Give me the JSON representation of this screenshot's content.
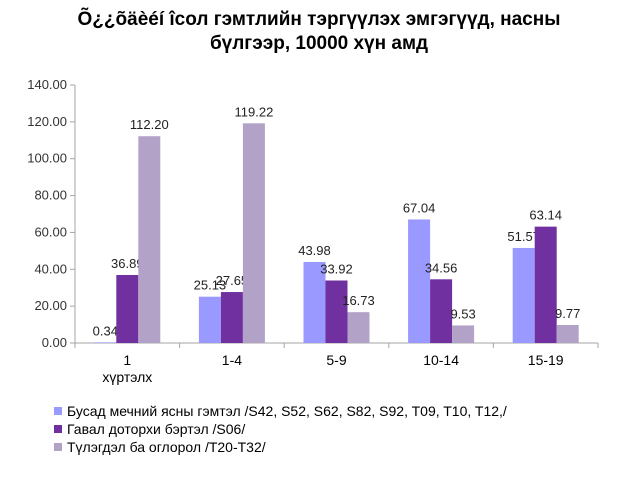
{
  "title_line1": "Õ¿¿õäèéí îсол гэмтлийн тэргүүлэх эмгэгүүд, насны",
  "title_line2": "бүлгээр, 10000 хүн амд",
  "colors": {
    "s1": "#9999ff",
    "s2": "#7030a0",
    "s3": "#b3a2c7",
    "axis": "#a6a6a6"
  },
  "chart_data": {
    "type": "bar",
    "title": "Õ¿¿õäèéí îсол гэмтлийн тэргүүлэх эмгэгүүд, насны бүлгээр, 10000 хүн амд",
    "categories": [
      "1 хүртэлх",
      "1-4",
      "5-9",
      "10-14",
      "15-19"
    ],
    "category_lines": [
      [
        "1",
        "хүртэлх"
      ],
      [
        "1-4"
      ],
      [
        "5-9"
      ],
      [
        "10-14"
      ],
      [
        "15-19"
      ]
    ],
    "ylim": [
      0,
      140
    ],
    "yticks": [
      "0.00",
      "20.00",
      "40.00",
      "60.00",
      "80.00",
      "100.00",
      "120.00",
      "140.00"
    ],
    "grid": false,
    "legend_position": "bottom",
    "series": [
      {
        "name": "Бусад мечний ясны гэмтэл /S42, S52, S62, S82, S92, T09, T10, T12,/",
        "values": [
          0.34,
          25.13,
          43.98,
          67.04,
          51.57
        ],
        "labels": [
          "0.34",
          "25.13",
          "43.98",
          "67.04",
          "51.57"
        ]
      },
      {
        "name": "Гавал доторхи бэртэл /S06/",
        "values": [
          36.89,
          27.65,
          33.92,
          34.56,
          63.14
        ],
        "labels": [
          "36.89",
          "27.65",
          "33.92",
          "34.56",
          "63.14"
        ]
      },
      {
        "name": "Түлэгдэл ба оглорол /T20-T32/",
        "values": [
          112.2,
          119.22,
          16.73,
          9.53,
          9.77
        ],
        "labels": [
          "112.20",
          "119.22",
          "16.73",
          "9.53",
          "9.77"
        ]
      }
    ]
  }
}
